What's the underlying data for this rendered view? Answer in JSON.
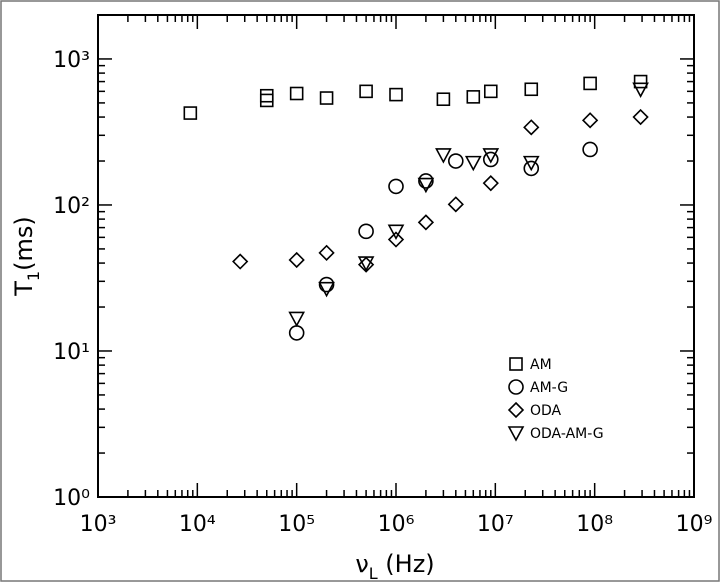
{
  "chart_data": {
    "type": "scatter",
    "xlabel": {
      "text": "ν",
      "sub": "L",
      "rest": " (Hz)"
    },
    "ylabel": {
      "text": "T",
      "sub": "1",
      "rest": "(ms)"
    },
    "xscale": "log",
    "yscale": "log",
    "xlim": [
      1000,
      1000000000
    ],
    "ylim": [
      1,
      2000
    ],
    "xticks": [
      {
        "value": 1000,
        "label": "10³"
      },
      {
        "value": 10000,
        "label": "10⁴"
      },
      {
        "value": 100000,
        "label": "10⁵"
      },
      {
        "value": 1000000,
        "label": "10⁶"
      },
      {
        "value": 10000000,
        "label": "10⁷"
      },
      {
        "value": 100000000,
        "label": "10⁸"
      },
      {
        "value": 1000000000,
        "label": "10⁹"
      }
    ],
    "yticks": [
      {
        "value": 1,
        "label": "10⁰"
      },
      {
        "value": 10,
        "label": "10¹"
      },
      {
        "value": 100,
        "label": "10²"
      },
      {
        "value": 1000,
        "label": "10³"
      }
    ],
    "legend": "lower right",
    "series": [
      {
        "name": "AM",
        "marker": "square",
        "color": "#000000",
        "x": [
          8500,
          50000,
          50000,
          100000,
          200000,
          500000,
          1000000,
          3000000,
          6000000,
          9000000,
          23000000,
          90000000,
          290000000
        ],
        "values": [
          426,
          560,
          520,
          580,
          540,
          600,
          570,
          530,
          550,
          600,
          620,
          680,
          700
        ]
      },
      {
        "name": "AM-G",
        "marker": "circle",
        "color": "#000000",
        "x": [
          100000,
          200000,
          500000,
          1000000,
          2000000,
          4000000,
          9000000,
          23000000,
          90000000
        ],
        "values": [
          13.3,
          28.5,
          66,
          134,
          146,
          200,
          205,
          178,
          240
        ]
      },
      {
        "name": "ODA",
        "marker": "diamond",
        "color": "#000000",
        "x": [
          27000,
          100000,
          200000,
          500000,
          1000000,
          2000000,
          4000000,
          9000000,
          23000000,
          90000000,
          290000000
        ],
        "values": [
          41,
          42,
          47,
          39,
          58,
          76,
          101,
          141,
          340,
          380,
          400
        ]
      },
      {
        "name": "ODA-AM-G",
        "marker": "triangle-down",
        "color": "#000000",
        "x": [
          100000,
          200000,
          500000,
          1000000,
          2000000,
          3000000,
          6000000,
          9000000,
          23000000,
          290000000
        ],
        "values": [
          16.7,
          26.7,
          40,
          66,
          138,
          220,
          195,
          220,
          195,
          620
        ]
      }
    ]
  }
}
